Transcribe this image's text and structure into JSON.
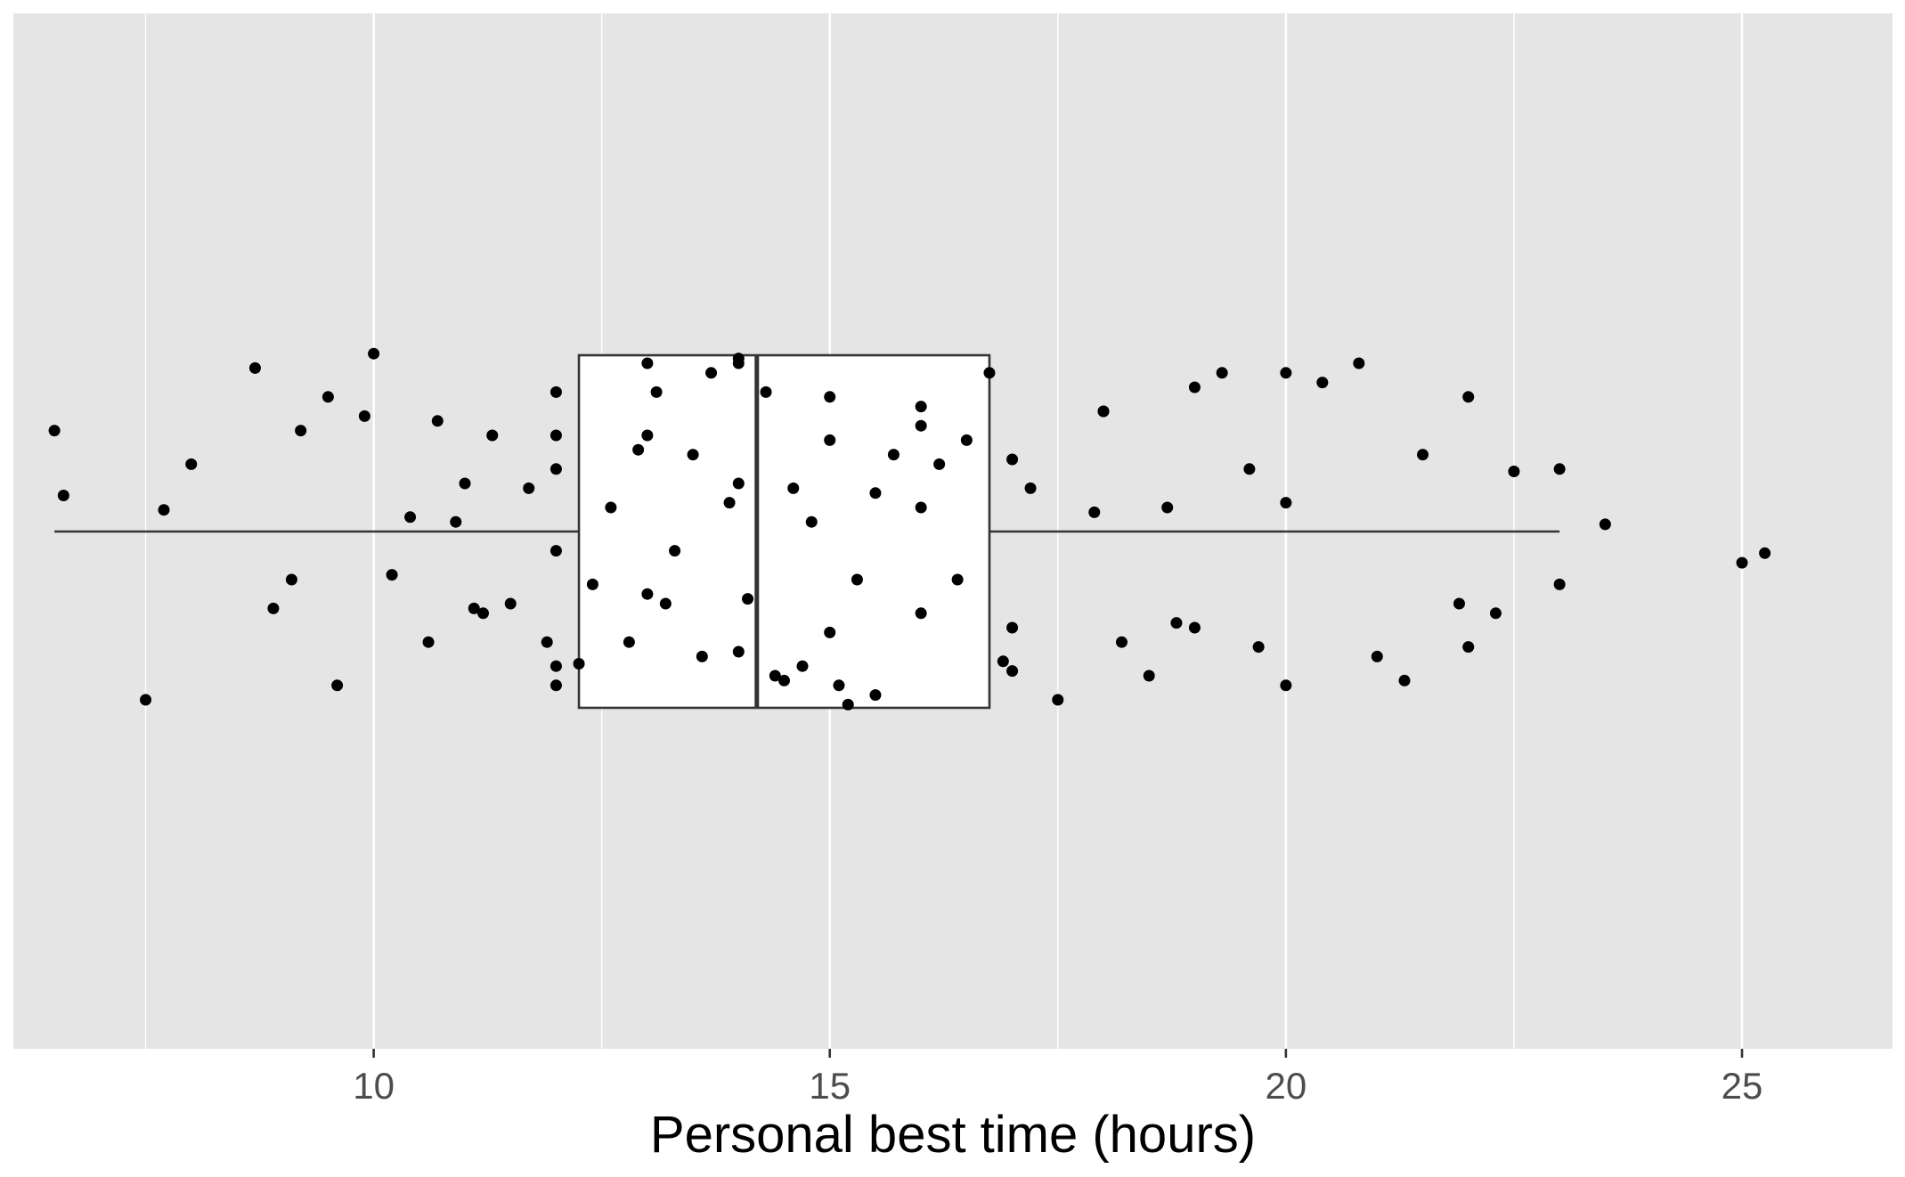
{
  "chart_data": {
    "type": "boxplot",
    "orientation": "horizontal",
    "title": "",
    "xlabel": "Personal best time (hours)",
    "ylabel": "",
    "xlim": [
      6.05,
      26.65
    ],
    "x_ticks": [
      10,
      15,
      20,
      25
    ],
    "x_tick_labels": [
      "10",
      "15",
      "20",
      "25"
    ],
    "minor_ticks": [
      7.5,
      12.5,
      17.5,
      22.5
    ],
    "grid": true,
    "legend": "none",
    "box": {
      "whisker_low": 6.5,
      "q1": 12.25,
      "median": 14.2,
      "q3": 16.75,
      "whisker_high": 23
    },
    "points": {
      "x": [
        6.5,
        7.5,
        8.7,
        9.2,
        9.5,
        10,
        10.7,
        11,
        12,
        12.25,
        13,
        13.2,
        13.7,
        14,
        14.5,
        15,
        15.2,
        16,
        16.5,
        16.75,
        17.5,
        18,
        18.5,
        19,
        19.3,
        20,
        20.8,
        21.3,
        22,
        22.5,
        23,
        23.5,
        25,
        25.25,
        6.6,
        7.7,
        8,
        8.9,
        9.1,
        9.6,
        9.9,
        10.2,
        10.4,
        10.6,
        10.9,
        11.1,
        11.3,
        11.5,
        11.7,
        11.9,
        12,
        12,
        12,
        12,
        12,
        12.4,
        12.6,
        12.8,
        13,
        13,
        13.1,
        13.3,
        13.5,
        13.6,
        13.9,
        14,
        14,
        14,
        14.1,
        14.3,
        14.4,
        14.6,
        14.8,
        15,
        15,
        15.1,
        15.3,
        15.5,
        15.5,
        15.7,
        16,
        16,
        16,
        16.2,
        16.4,
        16.9,
        17,
        17,
        17,
        17.2,
        17.9,
        18,
        18.2,
        18.7,
        18.8,
        19,
        19.6,
        19.7,
        20,
        20,
        20.4,
        21,
        21.5,
        21.9,
        22,
        22.3,
        23,
        11.2,
        12.9,
        14.7
      ],
      "y": [
        0.42,
        -0.7,
        0.68,
        0.42,
        0.56,
        0.74,
        0.46,
        0.2,
        0.58,
        -0.55,
        0.7,
        -0.3,
        0.66,
        0.72,
        -0.62,
        0.56,
        -0.72,
        0.52,
        0.38,
        0.66,
        -0.7,
        0.5,
        -0.6,
        -0.4,
        0.66,
        0.66,
        0.7,
        -0.62,
        0.56,
        0.25,
        0.26,
        0.03,
        -0.13,
        -0.09,
        0.15,
        0.09,
        0.28,
        -0.32,
        -0.2,
        -0.64,
        0.48,
        -0.18,
        0.06,
        -0.46,
        0.04,
        -0.32,
        0.4,
        -0.3,
        0.18,
        -0.46,
        0.4,
        0.26,
        -0.08,
        -0.64,
        -0.56,
        -0.22,
        0.1,
        -0.46,
        0.4,
        -0.26,
        0.58,
        -0.08,
        0.32,
        -0.52,
        0.12,
        0.7,
        -0.5,
        0.2,
        -0.28,
        0.58,
        -0.6,
        0.18,
        0.04,
        0.38,
        -0.42,
        -0.64,
        -0.2,
        0.16,
        -0.68,
        0.32,
        0.44,
        0.1,
        -0.34,
        0.28,
        -0.2,
        -0.54,
        0.3,
        -0.4,
        -0.58,
        0.18,
        0.08,
        0.5,
        -0.46,
        0.1,
        -0.38,
        0.6,
        0.26,
        -0.48,
        0.12,
        -0.64,
        0.62,
        -0.52,
        0.32,
        -0.3,
        -0.48,
        -0.34,
        -0.22,
        -0.34,
        0.34,
        -0.56
      ]
    },
    "colors": {
      "panel_background": "#e5e5e5",
      "grid_major": "#ffffff",
      "box_fill": "#ffffff",
      "box_stroke": "#333333",
      "point": "#000000",
      "tick_label": "#4d4d4d",
      "axis_title": "#000000"
    }
  }
}
